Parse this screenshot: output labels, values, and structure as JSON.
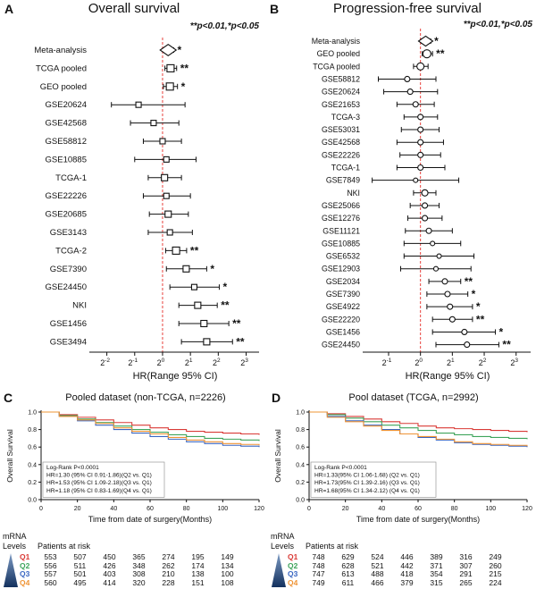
{
  "figure": {
    "panels": {
      "A": {
        "letter": "A",
        "title": "Overall survival",
        "note": "**p<0.01,*p<0.05"
      },
      "B": {
        "letter": "B",
        "title": "Progression-free survival",
        "note": "**p<0.01,*p<0.05"
      },
      "C": {
        "letter": "C",
        "title": "Pooled dataset (non-TCGA, n=2226)"
      },
      "D": {
        "letter": "D",
        "title": "Pool dataset (TCGA, n=2992)"
      }
    },
    "risk_table_header": {
      "mrna": "mRNA",
      "levels": "Levels",
      "patients": "Patients at risk"
    }
  },
  "chart_data": [
    {
      "id": "A",
      "type": "forest",
      "title": "Overall survival",
      "xlabel": "HR(Range 95% CI)",
      "x_scale": "log2",
      "x_tick_exponents": [
        -2,
        -1,
        0,
        1,
        2,
        3
      ],
      "x_min_exp": -2.5,
      "x_max_exp": 3.4,
      "ref_hr": 1.0,
      "marker": "square",
      "ref_line_color": "#e8413c",
      "studies": [
        {
          "label": "Meta-analysis",
          "hr": 1.15,
          "lo": 1.02,
          "hi": 1.32,
          "sig": "*",
          "marker": "diamond",
          "size": 9
        },
        {
          "label": "TCGA pooled",
          "hr": 1.22,
          "lo": 1.06,
          "hi": 1.42,
          "sig": "**",
          "size": 8
        },
        {
          "label": "GEO pooled",
          "hr": 1.2,
          "lo": 1.02,
          "hi": 1.45,
          "sig": "*",
          "size": 8
        },
        {
          "label": "GSE20624",
          "hr": 0.55,
          "lo": 0.28,
          "hi": 1.75,
          "size": 6
        },
        {
          "label": "GSE42568",
          "hr": 0.8,
          "lo": 0.45,
          "hi": 1.5,
          "size": 6
        },
        {
          "label": "GSE58812",
          "hr": 1.0,
          "lo": 0.62,
          "hi": 1.6,
          "size": 6
        },
        {
          "label": "GSE10885",
          "hr": 1.1,
          "lo": 0.5,
          "hi": 2.3,
          "size": 6
        },
        {
          "label": "TCGA-1",
          "hr": 1.05,
          "lo": 0.7,
          "hi": 1.6,
          "size": 7
        },
        {
          "label": "GSE22226",
          "hr": 1.1,
          "lo": 0.62,
          "hi": 2.0,
          "size": 6
        },
        {
          "label": "GSE20685",
          "hr": 1.15,
          "lo": 0.72,
          "hi": 1.9,
          "size": 7
        },
        {
          "label": "GSE3143",
          "hr": 1.2,
          "lo": 0.7,
          "hi": 2.1,
          "size": 6
        },
        {
          "label": "TCGA-2",
          "hr": 1.4,
          "lo": 1.08,
          "hi": 1.82,
          "sig": "**",
          "size": 8
        },
        {
          "label": "GSE7390",
          "hr": 1.8,
          "lo": 1.1,
          "hi": 3.0,
          "sig": "*",
          "size": 7
        },
        {
          "label": "GSE24450",
          "hr": 2.2,
          "lo": 1.2,
          "hi": 4.1,
          "sig": "*",
          "size": 6
        },
        {
          "label": "NKI",
          "hr": 2.4,
          "lo": 1.5,
          "hi": 3.9,
          "sig": "**",
          "size": 7
        },
        {
          "label": "GSE1456",
          "hr": 2.8,
          "lo": 1.5,
          "hi": 5.2,
          "sig": "**",
          "size": 7
        },
        {
          "label": "GSE3494",
          "hr": 3.0,
          "lo": 1.6,
          "hi": 5.7,
          "sig": "**",
          "size": 7
        }
      ]
    },
    {
      "id": "B",
      "type": "forest",
      "title": "Progression-free survival",
      "xlabel": "HR(Range 95% CI)",
      "x_scale": "log2",
      "x_tick_exponents": [
        -1,
        0,
        1,
        2,
        3
      ],
      "x_min_exp": -1.7,
      "x_max_exp": 3.4,
      "ref_hr": 1.0,
      "marker": "circle",
      "ref_line_color": "#e8413c",
      "studies": [
        {
          "label": "Meta-analysis",
          "hr": 1.12,
          "lo": 1.02,
          "hi": 1.25,
          "sig": "*",
          "marker": "diamond",
          "size": 8
        },
        {
          "label": "GEO pooled",
          "hr": 1.15,
          "lo": 1.04,
          "hi": 1.3,
          "sig": "**",
          "size": 9
        },
        {
          "label": "TCGA pooled",
          "hr": 1.0,
          "lo": 0.86,
          "hi": 1.18,
          "size": 8
        },
        {
          "label": "GSE58812",
          "hr": 0.75,
          "lo": 0.4,
          "hi": 1.4,
          "size": 6
        },
        {
          "label": "GSE20624",
          "hr": 0.8,
          "lo": 0.45,
          "hi": 1.45,
          "size": 6
        },
        {
          "label": "GSE21653",
          "hr": 0.9,
          "lo": 0.6,
          "hi": 1.35,
          "size": 6
        },
        {
          "label": "TCGA-3",
          "hr": 1.0,
          "lo": 0.7,
          "hi": 1.45,
          "size": 6
        },
        {
          "label": "GSE53031",
          "hr": 1.0,
          "lo": 0.66,
          "hi": 1.5,
          "size": 6
        },
        {
          "label": "GSE42568",
          "hr": 1.0,
          "lo": 0.6,
          "hi": 1.65,
          "size": 6
        },
        {
          "label": "GSE22226",
          "hr": 1.0,
          "lo": 0.64,
          "hi": 1.55,
          "size": 6
        },
        {
          "label": "TCGA-1",
          "hr": 1.0,
          "lo": 0.6,
          "hi": 1.7,
          "size": 6
        },
        {
          "label": "GSE7849",
          "hr": 0.9,
          "lo": 0.35,
          "hi": 2.3,
          "size": 5
        },
        {
          "label": "NKI",
          "hr": 1.1,
          "lo": 0.86,
          "hi": 1.4,
          "size": 7
        },
        {
          "label": "GSE25066",
          "hr": 1.1,
          "lo": 0.8,
          "hi": 1.5,
          "size": 6
        },
        {
          "label": "GSE12276",
          "hr": 1.1,
          "lo": 0.76,
          "hi": 1.6,
          "size": 6
        },
        {
          "label": "GSE11121",
          "hr": 1.2,
          "lo": 0.72,
          "hi": 2.0,
          "size": 6
        },
        {
          "label": "GSE10885",
          "hr": 1.3,
          "lo": 0.7,
          "hi": 2.4,
          "size": 5
        },
        {
          "label": "GSE6532",
          "hr": 1.5,
          "lo": 0.7,
          "hi": 3.2,
          "size": 5
        },
        {
          "label": "GSE12903",
          "hr": 1.4,
          "lo": 0.65,
          "hi": 3.0,
          "size": 5
        },
        {
          "label": "GSE2034",
          "hr": 1.7,
          "lo": 1.2,
          "hi": 2.4,
          "sig": "**",
          "size": 6
        },
        {
          "label": "GSE7390",
          "hr": 1.8,
          "lo": 1.15,
          "hi": 2.8,
          "sig": "*",
          "size": 6
        },
        {
          "label": "GSE4922",
          "hr": 1.9,
          "lo": 1.15,
          "hi": 3.1,
          "sig": "*",
          "size": 6
        },
        {
          "label": "GSE22220",
          "hr": 2.0,
          "lo": 1.3,
          "hi": 3.1,
          "sig": "**",
          "size": 6
        },
        {
          "label": "GSE1456",
          "hr": 2.6,
          "lo": 1.3,
          "hi": 5.1,
          "sig": "*",
          "size": 6
        },
        {
          "label": "GSE24450",
          "hr": 2.75,
          "lo": 1.4,
          "hi": 5.5,
          "sig": "**",
          "size": 6
        }
      ]
    },
    {
      "id": "C",
      "type": "km",
      "title": "Pooled dataset (non-TCGA, n=2226)",
      "xlabel": "Time from date of surgery(Months)",
      "ylabel": "Overall Survival",
      "xlim": [
        0,
        120
      ],
      "ylim": [
        0,
        1
      ],
      "x_ticks": [
        0,
        20,
        40,
        60,
        80,
        100,
        120
      ],
      "y_ticks": [
        0,
        0.2,
        0.4,
        0.6,
        0.8,
        1.0
      ],
      "x_step": 10,
      "annotations": [
        "Log-Rank P<0.0001",
        "HR=1.30 (95% CI 0.91-1.86)(Q2 vs. Q1)",
        "HR=1.53 (95% CI 1.09-2.18)(Q3 vs. Q1)",
        "HR=1.18 (95% CI 0.83-1.69)(Q4 vs. Q1)"
      ],
      "series": [
        {
          "name": "Q1",
          "color": "#d93a36",
          "values": [
            1.0,
            0.97,
            0.94,
            0.91,
            0.88,
            0.85,
            0.82,
            0.8,
            0.78,
            0.77,
            0.76,
            0.75,
            0.74
          ]
        },
        {
          "name": "Q2",
          "color": "#3fa45b",
          "values": [
            1.0,
            0.96,
            0.92,
            0.88,
            0.84,
            0.8,
            0.77,
            0.74,
            0.72,
            0.7,
            0.69,
            0.68,
            0.67
          ]
        },
        {
          "name": "Q3",
          "color": "#3a67c2",
          "values": [
            1.0,
            0.95,
            0.9,
            0.85,
            0.8,
            0.76,
            0.72,
            0.69,
            0.66,
            0.64,
            0.62,
            0.61,
            0.6
          ]
        },
        {
          "name": "Q4",
          "color": "#ef9436",
          "values": [
            1.0,
            0.95,
            0.91,
            0.87,
            0.82,
            0.78,
            0.75,
            0.71,
            0.68,
            0.66,
            0.64,
            0.63,
            0.62
          ]
        }
      ],
      "risk_table": [
        {
          "name": "Q1",
          "values": [
            553,
            507,
            450,
            365,
            274,
            195,
            149
          ]
        },
        {
          "name": "Q2",
          "values": [
            556,
            511,
            426,
            348,
            262,
            174,
            134
          ]
        },
        {
          "name": "Q3",
          "values": [
            557,
            501,
            403,
            308,
            210,
            138,
            100
          ]
        },
        {
          "name": "Q4",
          "values": [
            560,
            495,
            414,
            320,
            228,
            151,
            108
          ]
        }
      ]
    },
    {
      "id": "D",
      "type": "km",
      "title": "Pool dataset (TCGA, n=2992)",
      "xlabel": "Time from date of surgery(Months)",
      "ylabel": "Overall Survival",
      "xlim": [
        0,
        120
      ],
      "ylim": [
        0,
        1
      ],
      "x_ticks": [
        0,
        20,
        40,
        60,
        80,
        100,
        120
      ],
      "y_ticks": [
        0,
        0.2,
        0.4,
        0.6,
        0.8,
        1.0
      ],
      "x_step": 10,
      "annotations": [
        "Log-Rank P<0.0001",
        "HR=1.33(95% CI 1.06-1.68) (Q2 vs. Q1)",
        "HR=1.73(95% CI 1.39-2.16) (Q3 vs. Q1)",
        "HR=1.68(95% CI 1.34-2.12) (Q4 vs. Q1)"
      ],
      "series": [
        {
          "name": "Q1",
          "color": "#d93a36",
          "values": [
            1.0,
            0.98,
            0.95,
            0.92,
            0.89,
            0.87,
            0.84,
            0.82,
            0.81,
            0.8,
            0.79,
            0.78,
            0.77
          ]
        },
        {
          "name": "Q2",
          "color": "#3fa45b",
          "values": [
            1.0,
            0.97,
            0.93,
            0.89,
            0.85,
            0.82,
            0.79,
            0.76,
            0.74,
            0.72,
            0.71,
            0.7,
            0.69
          ]
        },
        {
          "name": "Q3",
          "color": "#3a67c2",
          "values": [
            1.0,
            0.95,
            0.9,
            0.85,
            0.8,
            0.75,
            0.71,
            0.68,
            0.65,
            0.63,
            0.62,
            0.61,
            0.6
          ]
        },
        {
          "name": "Q4",
          "color": "#ef9436",
          "values": [
            1.0,
            0.94,
            0.89,
            0.84,
            0.79,
            0.75,
            0.72,
            0.69,
            0.66,
            0.64,
            0.63,
            0.62,
            0.61
          ]
        }
      ],
      "risk_table": [
        {
          "name": "Q1",
          "values": [
            748,
            629,
            524,
            446,
            389,
            316,
            249
          ]
        },
        {
          "name": "Q2",
          "values": [
            748,
            628,
            521,
            442,
            371,
            307,
            260
          ]
        },
        {
          "name": "Q3",
          "values": [
            747,
            613,
            488,
            418,
            354,
            291,
            215
          ]
        },
        {
          "name": "Q4",
          "values": [
            749,
            611,
            466,
            379,
            315,
            265,
            224
          ]
        }
      ]
    }
  ]
}
